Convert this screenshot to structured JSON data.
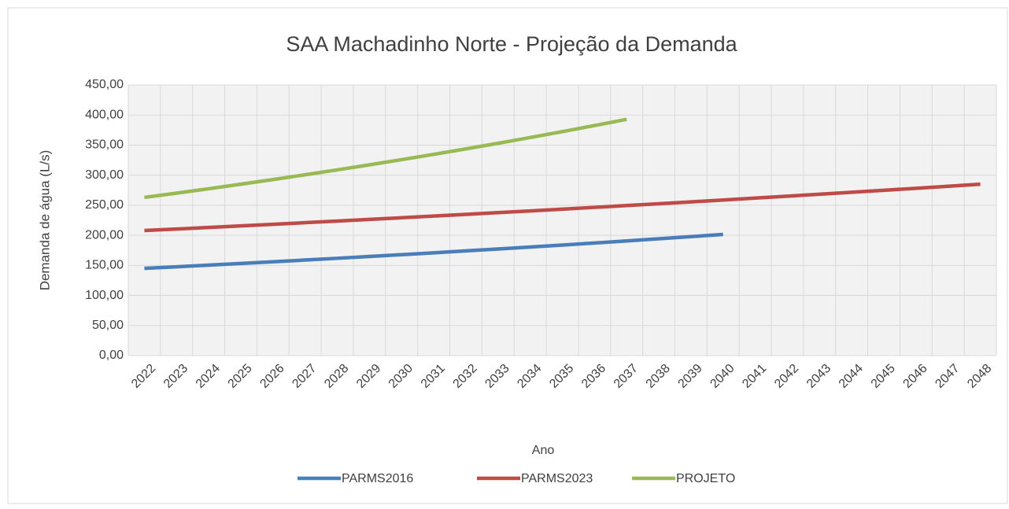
{
  "chart_data": {
    "type": "line",
    "title": "SAA Machadinho Norte  - Projeção da Demanda",
    "x_label": "Ano",
    "y_label": "Demanda de água (L/s)",
    "categories": [
      "2022",
      "2023",
      "2024",
      "2025",
      "2026",
      "2027",
      "2028",
      "2029",
      "2030",
      "2031",
      "2032",
      "2033",
      "2034",
      "2035",
      "2036",
      "2037",
      "2038",
      "2039",
      "2040",
      "2041",
      "2042",
      "2043",
      "2044",
      "2045",
      "2046",
      "2047",
      "2048"
    ],
    "series": [
      {
        "name": "PARMS2016",
        "color": "#4a7ebb",
        "values": [
          145.0,
          147.7,
          150.4,
          153.2,
          156.0,
          158.9,
          161.8,
          164.8,
          167.8,
          170.9,
          174.1,
          177.3,
          180.5,
          183.8,
          187.2,
          190.7,
          194.2,
          197.8,
          201.4,
          null,
          null,
          null,
          null,
          null,
          null,
          null,
          null
        ]
      },
      {
        "name": "PARMS2023",
        "color": "#be4b48",
        "values": [
          208.0,
          210.5,
          213.1,
          215.7,
          218.3,
          221.0,
          223.7,
          226.4,
          229.2,
          232.0,
          234.8,
          237.7,
          240.6,
          243.5,
          246.5,
          249.5,
          252.5,
          255.6,
          258.7,
          261.9,
          265.1,
          268.3,
          271.6,
          274.9,
          278.2,
          281.6,
          285.0
        ]
      },
      {
        "name": "PROJETO",
        "color": "#98b954",
        "values": [
          263.0,
          270.1,
          277.4,
          285.0,
          292.7,
          300.7,
          308.8,
          317.2,
          325.8,
          334.6,
          343.7,
          353.0,
          362.6,
          372.4,
          382.5,
          392.9,
          null,
          null,
          null,
          null,
          null,
          null,
          null,
          null,
          null,
          null,
          null
        ]
      }
    ],
    "ylim": [
      0,
      450
    ],
    "yticks": [
      {
        "value": 0,
        "label": "0,00"
      },
      {
        "value": 50,
        "label": "50,00"
      },
      {
        "value": 100,
        "label": "100,00"
      },
      {
        "value": 150,
        "label": "150,00"
      },
      {
        "value": 200,
        "label": "200,00"
      },
      {
        "value": 250,
        "label": "250,00"
      },
      {
        "value": 300,
        "label": "300,00"
      },
      {
        "value": 350,
        "label": "350,00"
      },
      {
        "value": 400,
        "label": "400,00"
      },
      {
        "value": 450,
        "label": "450,00"
      }
    ],
    "grid": true,
    "legend": "bottom"
  }
}
